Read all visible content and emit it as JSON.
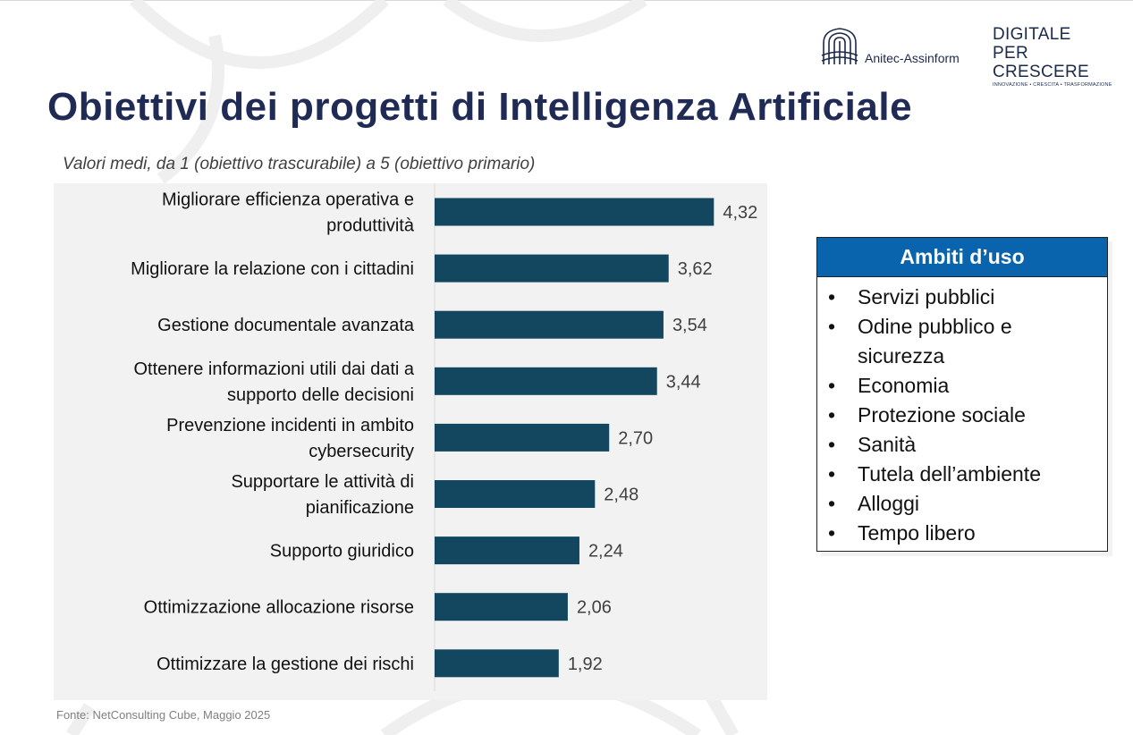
{
  "header": {
    "title": "Obiettivi dei progetti di Intelligenza Artificiale",
    "subtitle": "Valori medi, da 1 (obiettivo trascurabile) a 5 (obiettivo primario)"
  },
  "logos": {
    "anitec": "Anitec-Assinform",
    "digitale_line1": "DIGITALE",
    "digitale_line2": "PER CRESCERE",
    "digitale_tagline": "INNOVAZIONE • CRESCITA • TRASFORMAZIONE"
  },
  "chart_data": {
    "type": "bar",
    "orientation": "horizontal",
    "categories": [
      "Migliorare efficienza operativa e produttività",
      "Migliorare la relazione con i cittadini",
      "Gestione documentale avanzata",
      "Ottenere informazioni utili dai dati a supporto delle decisioni",
      "Prevenzione incidenti in ambito cybersecurity",
      "Supportare le attività di pianificazione",
      "Supporto giuridico",
      "Ottimizzazione allocazione risorse",
      "Ottimizzare la gestione dei rischi"
    ],
    "category_lines": [
      [
        "Migliorare efficienza operativa e",
        "produttività"
      ],
      [
        "Migliorare la relazione con i cittadini"
      ],
      [
        "Gestione documentale avanzata"
      ],
      [
        "Ottenere informazioni utili dai dati a",
        "supporto delle decisioni"
      ],
      [
        "Prevenzione incidenti in ambito",
        "cybersecurity"
      ],
      [
        "Supportare le attività di",
        "pianificazione"
      ],
      [
        "Supporto giuridico"
      ],
      [
        "Ottimizzazione allocazione risorse"
      ],
      [
        "Ottimizzare la gestione dei rischi"
      ]
    ],
    "values": [
      4.32,
      3.62,
      3.54,
      3.44,
      2.7,
      2.48,
      2.24,
      2.06,
      1.92
    ],
    "value_labels": [
      "4,32",
      "3,62",
      "3,54",
      "3,44",
      "2,70",
      "2,48",
      "2,24",
      "2,06",
      "1,92"
    ],
    "xlim": [
      0,
      5
    ],
    "bar_color": "#13475f",
    "grid": false,
    "legend": "none"
  },
  "legend_box": {
    "title": "Ambiti d’uso",
    "bullet": "•",
    "items": [
      "Servizi pubblici",
      "Odine pubblico e sicurezza",
      "Economia",
      "Protezione sociale",
      "Sanità",
      "Tutela dell’ambiente",
      "Alloggi",
      "Tempo libero"
    ]
  },
  "source": "Fonte: NetConsulting Cube, Maggio 2025",
  "colors": {
    "title": "#1f2a55",
    "legend_header": "#0a63ad",
    "chart_background": "#f2f2f2"
  }
}
